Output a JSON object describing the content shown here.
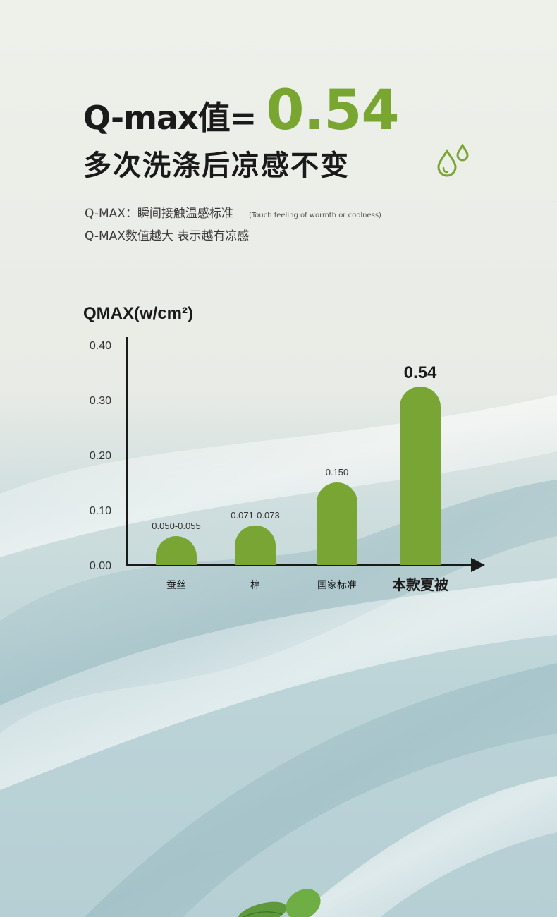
{
  "header": {
    "title_prefix": "Q-max值=",
    "title_value": "0.54",
    "subtitle": "多次洗涤后凉感不变",
    "desc_line1": "Q-MAX：瞬间接触温感标准",
    "desc_line1_note": "(Touch feeling of wormth or coolness)",
    "desc_line2": "Q-MAX数值越大 表示越有凉感"
  },
  "icons": {
    "drops": "water-drops-icon",
    "leaf": "mint-leaf-decoration"
  },
  "colors": {
    "accent": "#79a531",
    "bar": "#78a534",
    "text": "#1a1a1a"
  },
  "chart_data": {
    "type": "bar",
    "ylabel": "QMAX(w/cm²)",
    "ylim": [
      0,
      0.4
    ],
    "yticks": [
      "0.00",
      "0.10",
      "0.20",
      "0.30",
      "0.40"
    ],
    "grid": false,
    "categories": [
      "蚕丝",
      "棉",
      "国家标准",
      "本款夏被"
    ],
    "values": [
      0.0525,
      0.072,
      0.15,
      0.54
    ],
    "data_labels": [
      "0.050-0.055",
      "0.071-0.073",
      "0.150",
      "0.54"
    ],
    "highlight_category": "本款夏被"
  }
}
